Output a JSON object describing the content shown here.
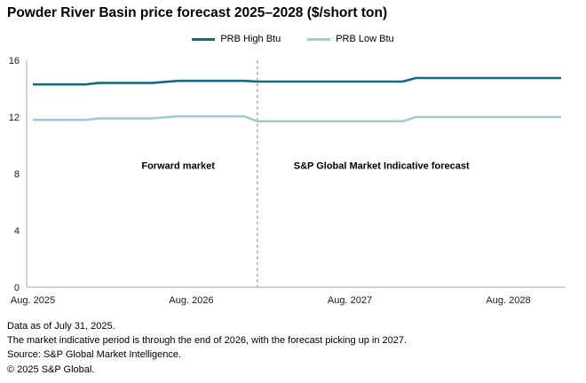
{
  "title": "Powder River Basin price forecast 2025–2028 ($/short ton)",
  "legend": [
    {
      "label": "PRB High Btu",
      "color": "#136a81"
    },
    {
      "label": "PRB Low Btu",
      "color": "#a4c9d4"
    }
  ],
  "colors": {
    "high_series": "#136a81",
    "low_series": "#a4c9d4",
    "axis": "#c6c6c6",
    "divider": "#878787",
    "text": "#1a1a1a"
  },
  "chart_data": {
    "type": "line",
    "title": "Powder River Basin price forecast 2025–2028 ($/short ton)",
    "xlabel": "",
    "ylabel": "$/short ton",
    "x_unit": "months since Aug 2025",
    "x_range_months": [
      0,
      40
    ],
    "x_tick_months": [
      0,
      12,
      24,
      36
    ],
    "x_tick_labels": [
      "Aug. 2025",
      "Aug. 2026",
      "Aug. 2027",
      "Aug. 2028"
    ],
    "ylim": [
      0,
      16
    ],
    "y_ticks": [
      0,
      4,
      8,
      12,
      16
    ],
    "grid": false,
    "legend_position": "top",
    "divider_month": 17,
    "divider_meaning": "boundary between forward market (through end of 2026) and indicative forecast (from 2027)",
    "series": [
      {
        "name": "PRB High Btu",
        "color": "#136a81",
        "points": [
          [
            0,
            14.3
          ],
          [
            4,
            14.3
          ],
          [
            5,
            14.4
          ],
          [
            9,
            14.4
          ],
          [
            11,
            14.55
          ],
          [
            16,
            14.55
          ],
          [
            17,
            14.5
          ],
          [
            28,
            14.5
          ],
          [
            29,
            14.75
          ],
          [
            40,
            14.75
          ]
        ]
      },
      {
        "name": "PRB Low Btu",
        "color": "#a4c9d4",
        "points": [
          [
            0,
            11.8
          ],
          [
            4,
            11.8
          ],
          [
            5,
            11.9
          ],
          [
            9,
            11.9
          ],
          [
            11,
            12.05
          ],
          [
            16,
            12.05
          ],
          [
            17,
            11.7
          ],
          [
            28,
            11.7
          ],
          [
            29,
            12.0
          ],
          [
            40,
            12.0
          ]
        ]
      }
    ],
    "annotations": [
      {
        "text": "Forward market",
        "month": 11,
        "value": 8.6
      },
      {
        "text": "S&P Global Market Indicative forecast",
        "month": 26.4,
        "value": 8.6
      }
    ]
  },
  "footnotes": [
    "Data as of July 31, 2025.",
    "The market indicative period is through the end of 2026, with the forecast picking up in 2027.",
    "Source: S&P Global Market Intelligence.",
    "© 2025 S&P Global."
  ]
}
